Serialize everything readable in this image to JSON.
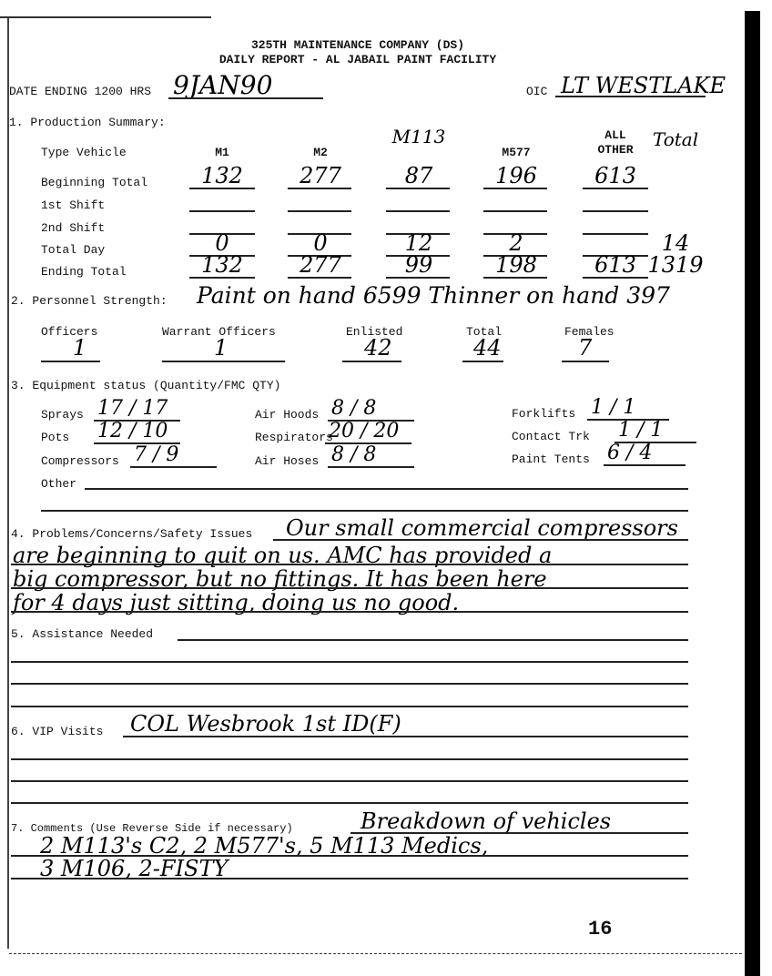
{
  "header": {
    "line1": "325TH MAINTENANCE COMPANY (DS)",
    "line2": "DAILY REPORT - AL JABAIL PAINT FACILITY"
  },
  "date": {
    "label": "DATE ENDING 1200 HRS",
    "value": "9JAN90"
  },
  "oic": {
    "label": "OIC",
    "value": "LT WESTLAKE"
  },
  "production": {
    "title": "1.  Production Summary:",
    "type_label": "Type Vehicle",
    "columns": [
      "M1",
      "M2",
      "M113",
      "M577",
      "ALL OTHER",
      "Total"
    ],
    "rows": [
      {
        "label": "Beginning Total",
        "values": [
          "132",
          "277",
          "87",
          "196",
          "613",
          ""
        ]
      },
      {
        "label": "1st Shift",
        "values": [
          "",
          "",
          "",
          "",
          "",
          ""
        ]
      },
      {
        "label": "2nd Shift",
        "values": [
          "",
          "",
          "",
          "",
          "",
          ""
        ]
      },
      {
        "label": "Total Day",
        "values": [
          "0",
          "0",
          "12",
          "2",
          "",
          "14"
        ]
      },
      {
        "label": "Ending Total",
        "values": [
          "132",
          "277",
          "99",
          "198",
          "613",
          "1319"
        ]
      }
    ]
  },
  "personnel": {
    "title": "2.  Personnel Strength:",
    "note": "Paint on hand 6599   Thinner on hand 397",
    "fields": [
      {
        "label": "Officers",
        "value": "1"
      },
      {
        "label": "Warrant Officers",
        "value": "1"
      },
      {
        "label": "Enlisted",
        "value": "42"
      },
      {
        "label": "Total",
        "value": "44"
      },
      {
        "label": "Females",
        "value": "7"
      }
    ]
  },
  "equipment": {
    "title": "3.  Equipment status (Quantity/FMC QTY)",
    "items": [
      {
        "label": "Sprays",
        "value": "17 / 17"
      },
      {
        "label": "Pots",
        "value": "12 / 10"
      },
      {
        "label": "Compressors",
        "value": "7 / 9"
      },
      {
        "label": "Air Hoods",
        "value": "8 / 8"
      },
      {
        "label": "Respirators",
        "value": "20 / 20"
      },
      {
        "label": "Air Hoses",
        "value": "8 / 8"
      },
      {
        "label": "Forklifts",
        "value": "1 / 1"
      },
      {
        "label": "Contact Trk",
        "value": "1 / 1"
      },
      {
        "label": "Paint Tents",
        "value": "6 / 4"
      }
    ],
    "other_label": "Other"
  },
  "problems": {
    "title": "4.  Problems/Concerns/Safety Issues",
    "lines": [
      "Our small commercial compressors",
      "are beginning to quit on us. AMC has provided a",
      "big compressor, but no fittings. It has been here",
      "for 4 days just sitting, doing us no good."
    ]
  },
  "assistance": {
    "title": "5.  Assistance Needed"
  },
  "vip": {
    "title": "6.  VIP Visits",
    "value": "COL Wesbrook 1st ID(F)"
  },
  "comments": {
    "title": "7.  Comments (Use Reverse Side if necessary)",
    "lines": [
      "Breakdown of vehicles",
      "2 M113's C2, 2 M577's, 5 M113 Medics,",
      "3 M106, 2-FISTY"
    ]
  },
  "page_number": "16"
}
